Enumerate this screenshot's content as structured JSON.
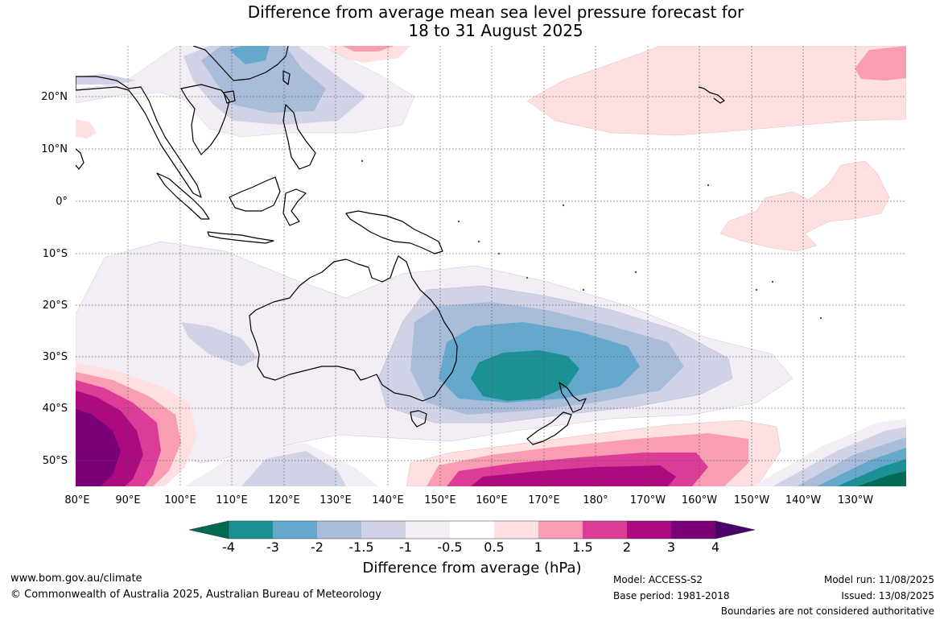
{
  "title": {
    "line1": "Difference from average mean sea level pressure forecast for",
    "line2": "18 to 31 August 2025"
  },
  "map": {
    "lat_ticks": [
      "20°N",
      "10°N",
      "0°",
      "10°S",
      "20°S",
      "30°S",
      "40°S",
      "50°S"
    ],
    "lon_ticks": [
      "80°E",
      "90°E",
      "100°E",
      "110°E",
      "120°E",
      "130°E",
      "140°E",
      "150°E",
      "160°E",
      "170°E",
      "180°",
      "170°W",
      "160°W",
      "150°W",
      "140°W",
      "130°W"
    ],
    "features": [
      "Australia",
      "New Zealand",
      "Maritime Continent",
      "Southeast Asia",
      "Hawaii"
    ]
  },
  "colorbar": {
    "title": "Difference from average (hPa)",
    "labels": [
      "-4",
      "-3",
      "-2",
      "-1.5",
      "-1",
      "-0.5",
      "0.5",
      "1",
      "1.5",
      "2",
      "3",
      "4"
    ],
    "colors": {
      "below_-4": "#006a54",
      "-4_-3": "#1c9195",
      "-3_-2": "#64a8cc",
      "-2_-1.5": "#a9bcd9",
      "-1.5_-1": "#d0d2e6",
      "-1_-0.5": "#f3eef6",
      "-0.5_0.5": "#ffffff",
      "0.5_1": "#fee0e0",
      "1_1.5": "#f89db2",
      "1.5_2": "#dc3c98",
      "2_3": "#ae0a7f",
      "3_4": "#7a0177",
      "above_4": "#4c0069"
    }
  },
  "footer": {
    "website": "www.bom.gov.au/climate",
    "copyright": "© Commonwealth of Australia 2025, Australian Bureau of Meteorology",
    "model": "Model: ACCESS-S2",
    "base_period": "Base period: 1981-2018",
    "model_run": "Model run: 11/08/2025",
    "issued": "Issued: 13/08/2025",
    "disclaimer": "Boundaries are not considered authoritative"
  }
}
